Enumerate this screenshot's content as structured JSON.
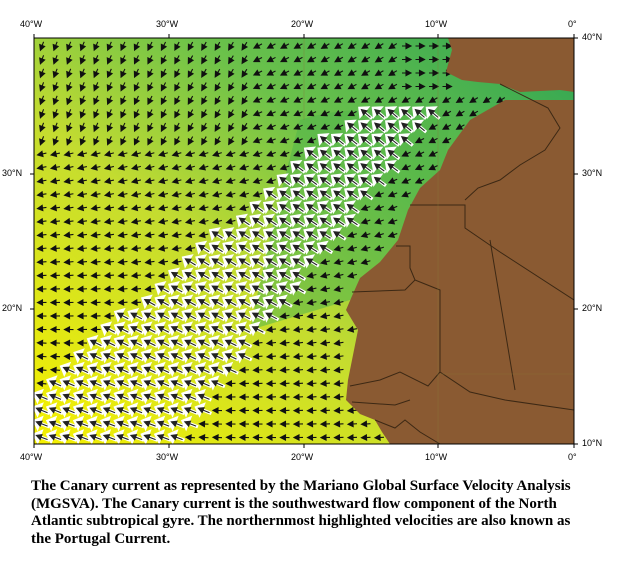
{
  "axis_labels": {
    "top": [
      "40°W",
      "30°W",
      "20°W",
      "10°W",
      "0°"
    ],
    "bottom": [
      "40°W",
      "30°W",
      "20°W",
      "10°W",
      "0°"
    ],
    "left": [
      "30°N",
      "20°N"
    ],
    "right": [
      "40°N",
      "30°N",
      "20°N",
      "10°N"
    ]
  },
  "caption": "The Canary current as represented by the Mariano Global Surface Velocity Analysis (MGSVA). The Canary current is the southwestward flow component of the North Atlantic subtropical gyre. The northernmost highlighted velocities are also known as the Portugal Current.",
  "colors": {
    "land": "#8a5a32",
    "ocean_north": "#3aa858",
    "ocean_mid": "#b8d838",
    "ocean_south": "#f2f200",
    "border": "#3c2814",
    "arrow_dark": "#111111",
    "arrow_highlight": "#ffffff"
  }
}
